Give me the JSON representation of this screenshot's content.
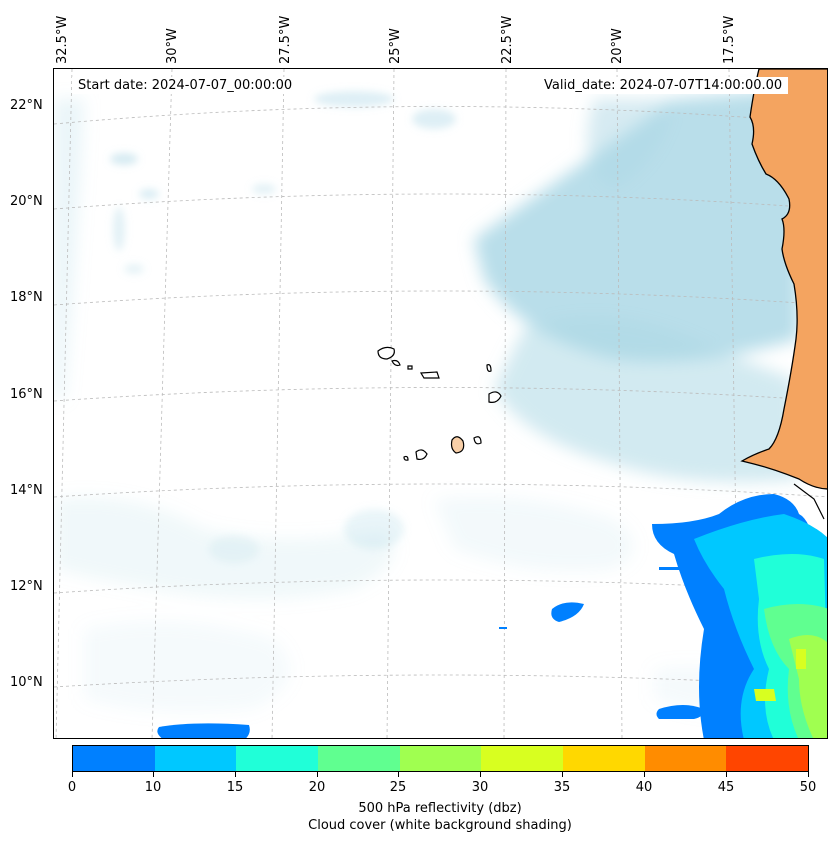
{
  "header": {
    "start_date": "Start date: 2024-07-07_00:00:00",
    "valid_date": "Valid_date: 2024-07-07T14:00:00.00"
  },
  "map": {
    "lon_labels": [
      "32.5°W",
      "30°W",
      "27.5°W",
      "25°W",
      "22.5°W",
      "20°W",
      "17.5°W"
    ],
    "lat_labels": [
      "22°N",
      "20°N",
      "18°N",
      "16°N",
      "14°N",
      "12°N",
      "10°N"
    ],
    "land_color": "#f4a460",
    "cloud_color": "#add8e6",
    "gridlines": true
  },
  "colorbar": {
    "ticks": [
      "0",
      "10",
      "15",
      "20",
      "25",
      "30",
      "35",
      "40",
      "45",
      "50"
    ],
    "colors": [
      "#0080ff",
      "#00c8ff",
      "#20ffd8",
      "#60ff90",
      "#a0ff50",
      "#d8ff20",
      "#ffd800",
      "#ff8c00",
      "#ff4500"
    ],
    "label": "500 hPa reflectivity (dbz)",
    "sublabel": "Cloud cover (white background shading)"
  }
}
